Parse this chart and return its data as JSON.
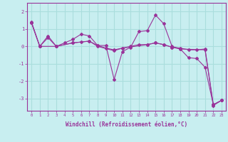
{
  "title": "",
  "xlabel": "Windchill (Refroidissement éolien,°C)",
  "ylabel": "",
  "background_color": "#c8eef0",
  "grid_color": "#aadddd",
  "line_color": "#993399",
  "xlim": [
    -0.5,
    23.5
  ],
  "ylim": [
    -3.7,
    2.5
  ],
  "yticks": [
    -3,
    -2,
    -1,
    0,
    1,
    2
  ],
  "xticks": [
    0,
    1,
    2,
    3,
    4,
    5,
    6,
    7,
    8,
    9,
    10,
    11,
    12,
    13,
    14,
    15,
    16,
    17,
    18,
    19,
    20,
    21,
    22,
    23
  ],
  "series": [
    {
      "x": [
        0,
        1,
        2,
        3,
        4,
        5,
        6,
        7,
        8,
        9,
        10,
        11,
        12,
        13,
        14,
        15,
        16,
        17,
        18,
        19,
        20,
        21,
        22,
        23
      ],
      "y": [
        1.4,
        0.0,
        0.6,
        0.0,
        0.2,
        0.4,
        0.7,
        0.6,
        0.05,
        0.05,
        -1.9,
        -0.3,
        -0.05,
        0.85,
        0.9,
        1.8,
        1.3,
        0.0,
        -0.15,
        -0.65,
        -0.7,
        -1.2,
        -3.35,
        -3.1
      ]
    },
    {
      "x": [
        0,
        1,
        2,
        3,
        5,
        7,
        8,
        9,
        10,
        11,
        12,
        13,
        14,
        15,
        16,
        17,
        18,
        19,
        20,
        21,
        22,
        23
      ],
      "y": [
        1.35,
        0.0,
        0.5,
        0.0,
        0.2,
        0.3,
        0.05,
        -0.1,
        -0.2,
        -0.1,
        0.0,
        0.1,
        0.1,
        0.2,
        0.1,
        -0.05,
        -0.1,
        -0.2,
        -0.2,
        -0.15,
        -3.35,
        -3.1
      ]
    },
    {
      "x": [
        0,
        1,
        3,
        5,
        6,
        7,
        8,
        10,
        11,
        14,
        15,
        16,
        17,
        18,
        21,
        22,
        23
      ],
      "y": [
        1.35,
        0.0,
        0.0,
        0.2,
        0.25,
        0.3,
        0.0,
        -0.25,
        -0.1,
        0.1,
        0.2,
        0.1,
        -0.05,
        -0.15,
        -0.2,
        -3.4,
        -3.1
      ]
    }
  ]
}
